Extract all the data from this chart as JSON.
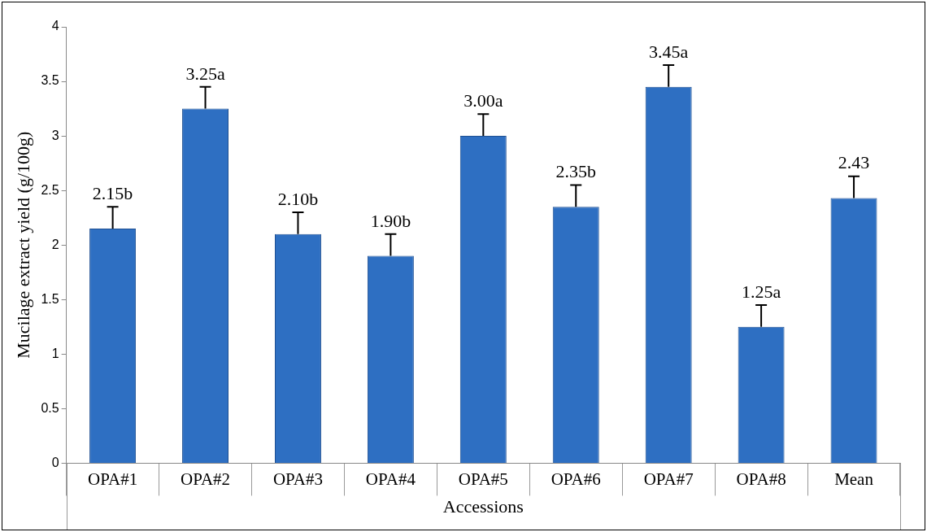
{
  "chart_data": {
    "type": "bar",
    "ylabel": "Mucilage extract yield (g/100g)",
    "xlabel": "Accessions",
    "categories": [
      "OPA#1",
      "OPA#2",
      "OPA#3",
      "OPA#4",
      "OPA#5",
      "OPA#6",
      "OPA#7",
      "OPA#8",
      "Mean"
    ],
    "values": [
      2.15,
      3.25,
      2.1,
      1.9,
      3.0,
      2.35,
      3.45,
      1.25,
      2.43
    ],
    "errors": [
      [
        2.15,
        2.35
      ],
      [
        3.25,
        3.45
      ],
      [
        2.1,
        2.3
      ],
      [
        1.9,
        2.1
      ],
      [
        3.0,
        3.2
      ],
      [
        2.35,
        2.55
      ],
      [
        3.45,
        3.65
      ],
      [
        1.25,
        1.45
      ],
      [
        2.43,
        2.63
      ]
    ],
    "value_labels": [
      "2.15b",
      "3.25a",
      "2.10b",
      "1.90b",
      "3.00a",
      "2.35b",
      "3.45a",
      "1.25a",
      "2.43"
    ],
    "color": "#2e6fc2",
    "ylim": [
      0,
      4
    ],
    "yticks": [
      0,
      0.5,
      1,
      1.5,
      2,
      2.5,
      3,
      3.5,
      4
    ],
    "grid": false,
    "legend": false
  }
}
